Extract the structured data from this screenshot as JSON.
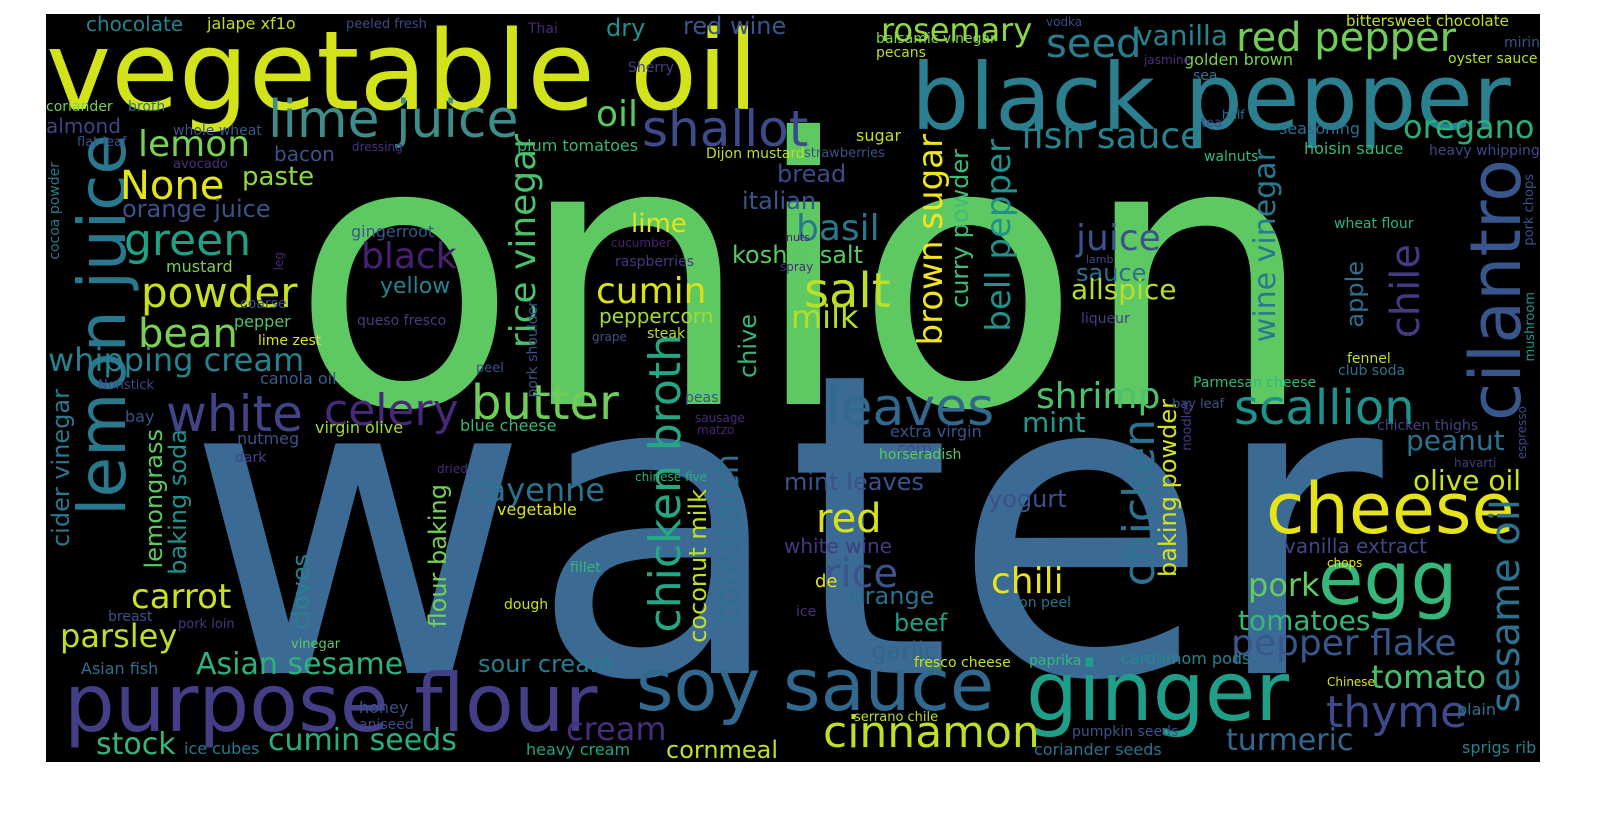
{
  "colors": {
    "background": "#000000",
    "frame": "#ffffff"
  },
  "words": [
    {
      "text": "onion",
      "color": "#5ec962"
    },
    {
      "text": "water",
      "color": "#3b6a94"
    },
    {
      "text": "vegetable oil",
      "color": "#d2e21b"
    },
    {
      "text": "black pepper",
      "color": "#2c7f8e"
    },
    {
      "text": "purpose flour",
      "color": "#433e85"
    },
    {
      "text": "soy sauce",
      "color": "#31688e"
    },
    {
      "text": "ginger",
      "color": "#1f9e89"
    },
    {
      "text": "lemon juice",
      "color": "#2a788e"
    },
    {
      "text": "egg",
      "color": "#35b779"
    },
    {
      "text": "cheese",
      "color": "#e5e419"
    },
    {
      "text": "cilantro",
      "color": "#39568c"
    },
    {
      "text": "lime juice",
      "color": "#3e8d8a"
    },
    {
      "text": "shallot",
      "color": "#3e4a89"
    },
    {
      "text": "white",
      "color": "#414487"
    },
    {
      "text": "celery",
      "color": "#482878"
    },
    {
      "text": "butter",
      "color": "#6ece58"
    },
    {
      "text": "leaves",
      "color": "#31688e"
    },
    {
      "text": "scallion",
      "color": "#21918c"
    },
    {
      "text": "chicken broth",
      "color": "#22a884"
    },
    {
      "text": "salt",
      "color": "#bddf26"
    },
    {
      "text": "cinnamon",
      "color": "#bddf26"
    },
    {
      "text": "thyme",
      "color": "#3e4a89"
    },
    {
      "text": "sesame oil",
      "color": "#2c728e"
    },
    {
      "text": "chicken",
      "color": "#2c728e"
    },
    {
      "text": "red pepper",
      "color": "#6ece58"
    },
    {
      "text": "seed",
      "color": "#287d8e"
    },
    {
      "text": "fish sauce",
      "color": "#25848e"
    },
    {
      "text": "oregano",
      "color": "#29af7f"
    },
    {
      "text": "green",
      "color": "#1fa187"
    },
    {
      "text": "powder",
      "color": "#c8e020"
    },
    {
      "text": "bean",
      "color": "#7ad151"
    },
    {
      "text": "None",
      "color": "#e5e419"
    },
    {
      "text": "lemon",
      "color": "#7ad151"
    },
    {
      "text": "rosemary",
      "color": "#90d743"
    },
    {
      "text": "cumin",
      "color": "#d8e219"
    },
    {
      "text": "milk",
      "color": "#b5de2b"
    },
    {
      "text": "basil",
      "color": "#2a788e"
    },
    {
      "text": "red",
      "color": "#d8e219"
    },
    {
      "text": "rice",
      "color": "#3a548c"
    },
    {
      "text": "chili",
      "color": "#e7e419"
    },
    {
      "text": "pork",
      "color": "#63cb5f"
    },
    {
      "text": "tomato",
      "color": "#44bf70"
    },
    {
      "text": "tomatoes",
      "color": "#35b779"
    },
    {
      "text": "pepper flake",
      "color": "#38588c"
    },
    {
      "text": "turmeric",
      "color": "#31688e"
    },
    {
      "text": "olive oil",
      "color": "#cae11f"
    },
    {
      "text": "peanut",
      "color": "#2c728e"
    },
    {
      "text": "shrimp",
      "color": "#4ac16d"
    },
    {
      "text": "mint",
      "color": "#1f998a"
    },
    {
      "text": "juice",
      "color": "#3b528b"
    },
    {
      "text": "sauce",
      "color": "#2e6f8e"
    },
    {
      "text": "allspice",
      "color": "#b8de29"
    },
    {
      "text": "carrot",
      "color": "#cde11d"
    },
    {
      "text": "parsley",
      "color": "#bddf26"
    },
    {
      "text": "Asian sesame",
      "color": "#2db27d"
    },
    {
      "text": "stock",
      "color": "#34b679"
    },
    {
      "text": "cumin seeds",
      "color": "#29af7f"
    },
    {
      "text": "cream",
      "color": "#472d7b"
    },
    {
      "text": "cornmeal",
      "color": "#c0df25"
    },
    {
      "text": "whipping cream",
      "color": "#26828e"
    },
    {
      "text": "orange juice",
      "color": "#3b528b"
    },
    {
      "text": "black",
      "color": "#482173"
    },
    {
      "text": "cayenne",
      "color": "#2c728e"
    },
    {
      "text": "paste",
      "color": "#8fd744"
    },
    {
      "text": "oil",
      "color": "#5cc863"
    },
    {
      "text": "vanilla",
      "color": "#25848e"
    },
    {
      "text": "rice vinegar",
      "color": "#4ac16d"
    },
    {
      "text": "brown sugar",
      "color": "#f1e51d"
    },
    {
      "text": "bell pepper",
      "color": "#21918c"
    },
    {
      "text": "wine vinegar",
      "color": "#2a788e"
    },
    {
      "text": "chile",
      "color": "#443a83"
    },
    {
      "text": "cornstarch",
      "color": "#2d708e"
    },
    {
      "text": "coconut milk",
      "color": "#c2df23"
    },
    {
      "text": "baking powder",
      "color": "#d5e21a"
    },
    {
      "text": "curry powder",
      "color": "#3dbc74"
    },
    {
      "text": "flour baking",
      "color": "#75d054"
    },
    {
      "text": "lemongrass",
      "color": "#5ec962"
    },
    {
      "text": "baking soda",
      "color": "#20928c"
    },
    {
      "text": "cider vinegar",
      "color": "#2a788e"
    },
    {
      "text": "cloves",
      "color": "#26828e"
    },
    {
      "text": "chive",
      "color": "#35b779"
    },
    {
      "text": "apple",
      "color": "#2e6e8e"
    },
    {
      "text": "mint leaves",
      "color": "#3b528b"
    },
    {
      "text": "white wine",
      "color": "#443983"
    },
    {
      "text": "vanilla extract",
      "color": "#404688"
    },
    {
      "text": "sour cream",
      "color": "#287c8e"
    },
    {
      "text": "garlic",
      "color": "#32648e"
    },
    {
      "text": "beef",
      "color": "#1f9e89"
    },
    {
      "text": "orange",
      "color": "#2e6e8e"
    },
    {
      "text": "yogurt",
      "color": "#3b528b"
    },
    {
      "text": "italian",
      "color": "#39568c"
    },
    {
      "text": "bread",
      "color": "#3f4889"
    },
    {
      "text": "kosher salt",
      "color": "#5ac864"
    },
    {
      "text": "lime",
      "color": "#e5e419"
    },
    {
      "text": "peppercorn",
      "color": "#a2da37"
    },
    {
      "text": "yellow",
      "color": "#26828e"
    },
    {
      "text": "dry",
      "color": "#21918c"
    },
    {
      "text": "red wine",
      "color": "#3a548c"
    },
    {
      "text": "chocolate",
      "color": "#25838e"
    },
    {
      "text": "jalape xf1o",
      "color": "#bddf26"
    },
    {
      "text": "peeled fresh",
      "color": "#3e4989"
    },
    {
      "text": "Thai",
      "color": "#482878"
    },
    {
      "text": "balsamic vinegar",
      "color": "#85d54a"
    },
    {
      "text": "pecans",
      "color": "#b5de2b"
    },
    {
      "text": "vodka",
      "color": "#3e4a89"
    },
    {
      "text": "bittersweet chocolate",
      "color": "#c2df23"
    },
    {
      "text": "mirin",
      "color": "#3b528b"
    },
    {
      "text": "oyster sauce",
      "color": "#b5de2b"
    },
    {
      "text": "golden brown",
      "color": "#7ad151"
    },
    {
      "text": "jasmine",
      "color": "#46307e"
    },
    {
      "text": "sea",
      "color": "#2a788e"
    },
    {
      "text": "Sherry",
      "color": "#433e85"
    },
    {
      "text": "coriander",
      "color": "#75d054"
    },
    {
      "text": "broth",
      "color": "#2c728e"
    },
    {
      "text": "almond",
      "color": "#414487"
    },
    {
      "text": "whole wheat",
      "color": "#39568c"
    },
    {
      "text": "flat leaf",
      "color": "#3b528b"
    },
    {
      "text": "bacon",
      "color": "#3b528b"
    },
    {
      "text": "dressing",
      "color": "#46337e"
    },
    {
      "text": "plum tomatoes",
      "color": "#35b779"
    },
    {
      "text": "sugar",
      "color": "#bddf26"
    },
    {
      "text": "Dijon mustard",
      "color": "#bddf26"
    },
    {
      "text": "strawberries",
      "color": "#3b528b"
    },
    {
      "text": "tea",
      "color": "#3e4a89"
    },
    {
      "text": "half",
      "color": "#2c728e"
    },
    {
      "text": "walnuts",
      "color": "#35b779"
    },
    {
      "text": "seasoning",
      "color": "#2e6e8e"
    },
    {
      "text": "hoisin sauce",
      "color": "#37b878"
    },
    {
      "text": "heavy whipping",
      "color": "#3e4a89"
    },
    {
      "text": "avocado",
      "color": "#46327e"
    },
    {
      "text": "cocoa powder",
      "color": "#2a788e"
    },
    {
      "text": "gingerroot",
      "color": "#38598c"
    },
    {
      "text": "leg",
      "color": "#482475"
    },
    {
      "text": "mustard",
      "color": "#7ad151"
    },
    {
      "text": "cucumber",
      "color": "#482173"
    },
    {
      "text": "raspberries",
      "color": "#443983"
    },
    {
      "text": "lamb",
      "color": "#3e4a89"
    },
    {
      "text": "spray",
      "color": "#472d7b"
    },
    {
      "text": "nuts",
      "color": "#481f70"
    },
    {
      "text": "wheat flour",
      "color": "#2db27d"
    },
    {
      "text": "pork chops",
      "color": "#3b528b"
    },
    {
      "text": "pepper",
      "color": "#50c46a"
    },
    {
      "text": "coarse",
      "color": "#3b528b"
    },
    {
      "text": "lime zest",
      "color": "#dde318"
    },
    {
      "text": "queso fresco",
      "color": "#433e85"
    },
    {
      "text": "grape",
      "color": "#3b528b"
    },
    {
      "text": "steak",
      "color": "#b8de29"
    },
    {
      "text": "pork shoulder",
      "color": "#3b528b"
    },
    {
      "text": "liqueur",
      "color": "#433e85"
    },
    {
      "text": "mushroom",
      "color": "#21918c"
    },
    {
      "text": "canola oil",
      "color": "#34618d"
    },
    {
      "text": "peel",
      "color": "#3b528b"
    },
    {
      "text": "Nonstick",
      "color": "#3e4a89"
    },
    {
      "text": "fennel",
      "color": "#bddf26"
    },
    {
      "text": "club soda",
      "color": "#2c728e"
    },
    {
      "text": "Parmesan cheese",
      "color": "#35b779"
    },
    {
      "text": "bay leaf",
      "color": "#3b528b"
    },
    {
      "text": "espresso",
      "color": "#3e4a89"
    },
    {
      "text": "chicken thighs",
      "color": "#414487"
    },
    {
      "text": "havarti",
      "color": "#433e85"
    },
    {
      "text": "extra virgin",
      "color": "#3b528b"
    },
    {
      "text": "corn",
      "color": "#3e4a89"
    },
    {
      "text": "horseradish",
      "color": "#5ec962"
    },
    {
      "text": "noodles",
      "color": "#443983"
    },
    {
      "text": "peas",
      "color": "#39568c"
    },
    {
      "text": "sausage",
      "color": "#472d7b"
    },
    {
      "text": "matzo",
      "color": "#482475"
    },
    {
      "text": "blue cheese",
      "color": "#37b878"
    },
    {
      "text": "virgin olive",
      "color": "#9fda3a"
    },
    {
      "text": "nutmeg",
      "color": "#3b528b"
    },
    {
      "text": "dark",
      "color": "#414487"
    },
    {
      "text": "bay",
      "color": "#3b528b"
    },
    {
      "text": "hot",
      "color": "#2e6e8e"
    },
    {
      "text": "chinese five",
      "color": "#2ab07f"
    },
    {
      "text": "dried",
      "color": "#472d7b"
    },
    {
      "text": "vegetable",
      "color": "#d8e219"
    },
    {
      "text": "fillet",
      "color": "#32b67a"
    },
    {
      "text": "de",
      "color": "#e5e419"
    },
    {
      "text": "breast",
      "color": "#3b528b"
    },
    {
      "text": "pork loin",
      "color": "#443983"
    },
    {
      "text": "dough",
      "color": "#cae11f"
    },
    {
      "text": "ice",
      "color": "#46337e"
    },
    {
      "text": "lemon peel",
      "color": "#2c728e"
    },
    {
      "text": "chops",
      "color": "#e5e419"
    },
    {
      "text": "Asian fish",
      "color": "#2e6e8e"
    },
    {
      "text": "vinegar",
      "color": "#5ec962"
    },
    {
      "text": "honey",
      "color": "#3b528b"
    },
    {
      "text": "aniseed",
      "color": "#3e4a89"
    },
    {
      "text": "ice cubes",
      "color": "#2a788e"
    },
    {
      "text": "heavy cream",
      "color": "#20a386"
    },
    {
      "text": "fresco cheese",
      "color": "#c8e020"
    },
    {
      "text": "paprika",
      "color": "#35b779"
    },
    {
      "text": "cardamom pods",
      "color": "#24878e"
    },
    {
      "text": "serrano chile",
      "color": "#bddf26"
    },
    {
      "text": "pumpkin seeds",
      "color": "#3a548c"
    },
    {
      "text": "coriander seeds",
      "color": "#2c728e"
    },
    {
      "text": "Chinese",
      "color": "#d8e219"
    },
    {
      "text": "plain",
      "color": "#2c728e"
    },
    {
      "text": "sprigs rib",
      "color": "#26828e"
    }
  ]
}
